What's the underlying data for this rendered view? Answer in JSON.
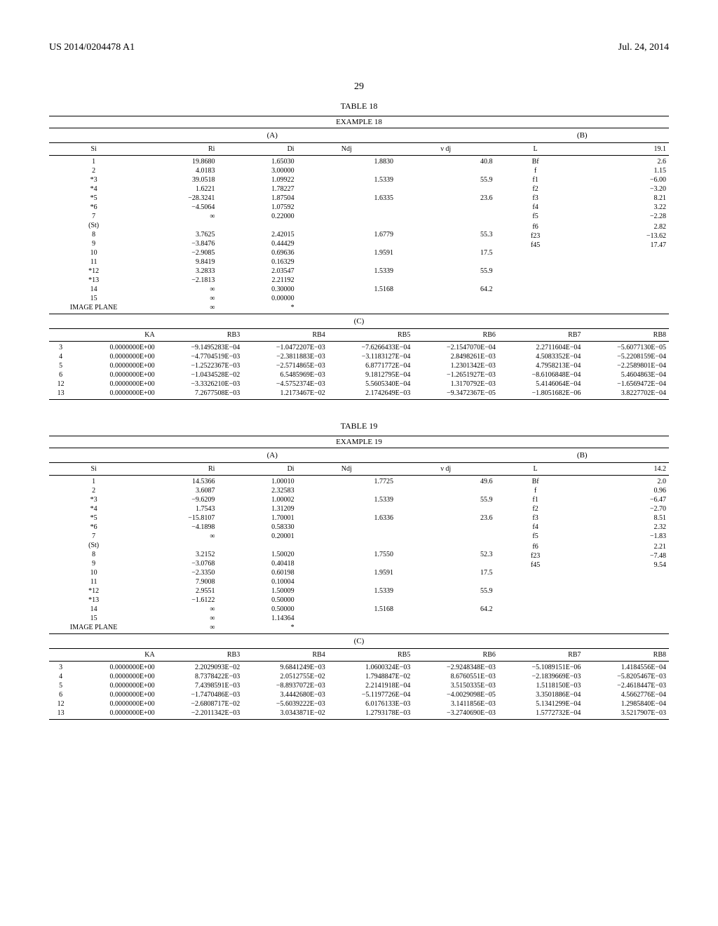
{
  "header": {
    "patent_id": "US 2014/0204478 A1",
    "date": "Jul. 24, 2014",
    "page": "29"
  },
  "tables": [
    {
      "label": "TABLE 18",
      "example": "EXAMPLE 18",
      "sectionA": {
        "header": "(A)",
        "cols": [
          "Si",
          "Ri",
          "Di",
          "Ndj",
          "ν dj"
        ],
        "rows": [
          [
            "1",
            "19.8680",
            "1.65030",
            "1.8830",
            "40.8"
          ],
          [
            "2",
            "4.0183",
            "3.00000",
            "",
            ""
          ],
          [
            "*3",
            "39.0518",
            "1.09922",
            "1.5339",
            "55.9"
          ],
          [
            "*4",
            "1.6221",
            "1.78227",
            "",
            ""
          ],
          [
            "*5",
            "−28.3241",
            "1.87504",
            "1.6335",
            "23.6"
          ],
          [
            "*6",
            "−4.5064",
            "1.07592",
            "",
            ""
          ],
          [
            "7",
            "∞",
            "0.22000",
            "",
            ""
          ],
          [
            "(St)",
            "",
            "",
            "",
            ""
          ],
          [
            "8",
            "3.7625",
            "2.42015",
            "1.6779",
            "55.3"
          ],
          [
            "9",
            "−3.8476",
            "0.44429",
            "",
            ""
          ],
          [
            "10",
            "−2.9085",
            "0.69636",
            "1.9591",
            "17.5"
          ],
          [
            "11",
            "9.8419",
            "0.16329",
            "",
            ""
          ],
          [
            "*12",
            "3.2833",
            "2.03547",
            "1.5339",
            "55.9"
          ],
          [
            "*13",
            "−2.1813",
            "2.21192",
            "",
            ""
          ],
          [
            "14",
            "∞",
            "0.30000",
            "1.5168",
            "64.2"
          ],
          [
            "15",
            "∞",
            "0.00000",
            "",
            ""
          ],
          [
            "IMAGE PLANE",
            "∞",
            "*",
            "",
            ""
          ]
        ]
      },
      "sectionB": {
        "header": "(B)",
        "rows": [
          [
            "L",
            "19.1"
          ],
          [
            "Bf",
            "2.6"
          ],
          [
            "f",
            "1.15"
          ],
          [
            "f1",
            "−6.00"
          ],
          [
            "f2",
            "−3.20"
          ],
          [
            "f3",
            "8.21"
          ],
          [
            "f4",
            "3.22"
          ],
          [
            "f5",
            "−2.28"
          ],
          [
            "",
            ""
          ],
          [
            "f6",
            "2.82"
          ],
          [
            "f23",
            "−13.62"
          ],
          [
            "f45",
            "17.47"
          ]
        ]
      },
      "sectionC": {
        "header": "(C)",
        "cols": [
          "",
          "KA",
          "RB3",
          "RB4",
          "RB5",
          "RB6",
          "RB7",
          "RB8"
        ],
        "rows": [
          [
            "3",
            "0.0000000E+00",
            "−9.1495283E−04",
            "−1.0472207E−03",
            "−7.6266433E−04",
            "−2.1547070E−04",
            "2.2711604E−04",
            "−5.6077130E−05"
          ],
          [
            "4",
            "0.0000000E+00",
            "−4.7704519E−03",
            "−2.3811883E−03",
            "−3.1183127E−04",
            "2.8498261E−03",
            "4.5083352E−04",
            "−5.2208159E−04"
          ],
          [
            "5",
            "0.0000000E+00",
            "−1.2522367E−03",
            "−2.5714865E−03",
            "6.8771772E−04",
            "1.2301342E−03",
            "4.7958213E−04",
            "−2.2589801E−04"
          ],
          [
            "6",
            "0.0000000E+00",
            "−1.0434528E−02",
            "6.5485969E−03",
            "9.1812795E−04",
            "−1.2651927E−03",
            "−8.6106848E−04",
            "5.4604863E−04"
          ],
          [
            "12",
            "0.0000000E+00",
            "−3.3326210E−03",
            "−4.5752374E−03",
            "5.5605340E−04",
            "1.3170792E−03",
            "5.4146064E−04",
            "−1.6569472E−04"
          ],
          [
            "13",
            "0.0000000E+00",
            "7.2677508E−03",
            "1.2173467E−02",
            "2.1742649E−03",
            "−9.3472367E−05",
            "−1.8051682E−06",
            "3.8227702E−04"
          ]
        ]
      }
    },
    {
      "label": "TABLE 19",
      "example": "EXAMPLE 19",
      "sectionA": {
        "header": "(A)",
        "cols": [
          "Si",
          "Ri",
          "Di",
          "Ndj",
          "ν dj"
        ],
        "rows": [
          [
            "1",
            "14.5366",
            "1.00010",
            "1.7725",
            "49.6"
          ],
          [
            "2",
            "3.6087",
            "2.32583",
            "",
            ""
          ],
          [
            "*3",
            "−9.6209",
            "1.00002",
            "1.5339",
            "55.9"
          ],
          [
            "*4",
            "1.7543",
            "1.31209",
            "",
            ""
          ],
          [
            "*5",
            "−15.8107",
            "1.70001",
            "1.6336",
            "23.6"
          ],
          [
            "*6",
            "−4.1898",
            "0.58330",
            "",
            ""
          ],
          [
            "7",
            "∞",
            "0.20001",
            "",
            ""
          ],
          [
            "(St)",
            "",
            "",
            "",
            ""
          ],
          [
            "8",
            "3.2152",
            "1.50020",
            "1.7550",
            "52.3"
          ],
          [
            "9",
            "−3.0768",
            "0.40418",
            "",
            ""
          ],
          [
            "10",
            "−2.3350",
            "0.60198",
            "1.9591",
            "17.5"
          ],
          [
            "11",
            "7.9008",
            "0.10004",
            "",
            ""
          ],
          [
            "*12",
            "2.9551",
            "1.50009",
            "1.5339",
            "55.9"
          ],
          [
            "*13",
            "−1.6122",
            "0.50000",
            "",
            ""
          ],
          [
            "14",
            "∞",
            "0.50000",
            "1.5168",
            "64.2"
          ],
          [
            "15",
            "∞",
            "1.14364",
            "",
            ""
          ],
          [
            "IMAGE PLANE",
            "∞",
            "*",
            "",
            ""
          ]
        ]
      },
      "sectionB": {
        "header": "(B)",
        "rows": [
          [
            "L",
            "14.2"
          ],
          [
            "Bf",
            "2.0"
          ],
          [
            "f",
            "0.96"
          ],
          [
            "f1",
            "−6.47"
          ],
          [
            "f2",
            "−2.70"
          ],
          [
            "f3",
            "8.51"
          ],
          [
            "f4",
            "2.32"
          ],
          [
            "f5",
            "−1.83"
          ],
          [
            "",
            ""
          ],
          [
            "f6",
            "2.21"
          ],
          [
            "f23",
            "−7.48"
          ],
          [
            "f45",
            "9.54"
          ]
        ]
      },
      "sectionC": {
        "header": "(C)",
        "cols": [
          "",
          "KA",
          "RB3",
          "RB4",
          "RB5",
          "RB6",
          "RB7",
          "RB8"
        ],
        "rows": [
          [
            "3",
            "0.0000000E+00",
            "2.2029093E−02",
            "9.6841249E−03",
            "1.0600324E−03",
            "−2.9248348E−03",
            "−5.1089151E−06",
            "1.4184556E−04"
          ],
          [
            "4",
            "0.0000000E+00",
            "8.7378422E−03",
            "2.0512755E−02",
            "1.7948847E−02",
            "8.6760551E−03",
            "−2.1839669E−03",
            "−5.8205467E−03"
          ],
          [
            "5",
            "0.0000000E+00",
            "7.4398591E−03",
            "−8.8937072E−03",
            "2.2141918E−04",
            "3.5150335E−03",
            "1.5118150E−03",
            "−2.4618447E−03"
          ],
          [
            "6",
            "0.0000000E+00",
            "−1.7470486E−03",
            "3.4442680E−03",
            "−5.1197726E−04",
            "−4.0029098E−05",
            "3.3501886E−04",
            "4.5662776E−04"
          ],
          [
            "12",
            "0.0000000E+00",
            "−2.6808717E−02",
            "−5.6039222E−03",
            "6.0176133E−03",
            "3.1411856E−03",
            "5.1341299E−04",
            "1.2985840E−04"
          ],
          [
            "13",
            "0.0000000E+00",
            "−2.2011342E−03",
            "3.0343871E−02",
            "1.2793178E−03",
            "−3.2740690E−03",
            "1.5772732E−04",
            "3.5217907E−03"
          ]
        ]
      }
    }
  ]
}
